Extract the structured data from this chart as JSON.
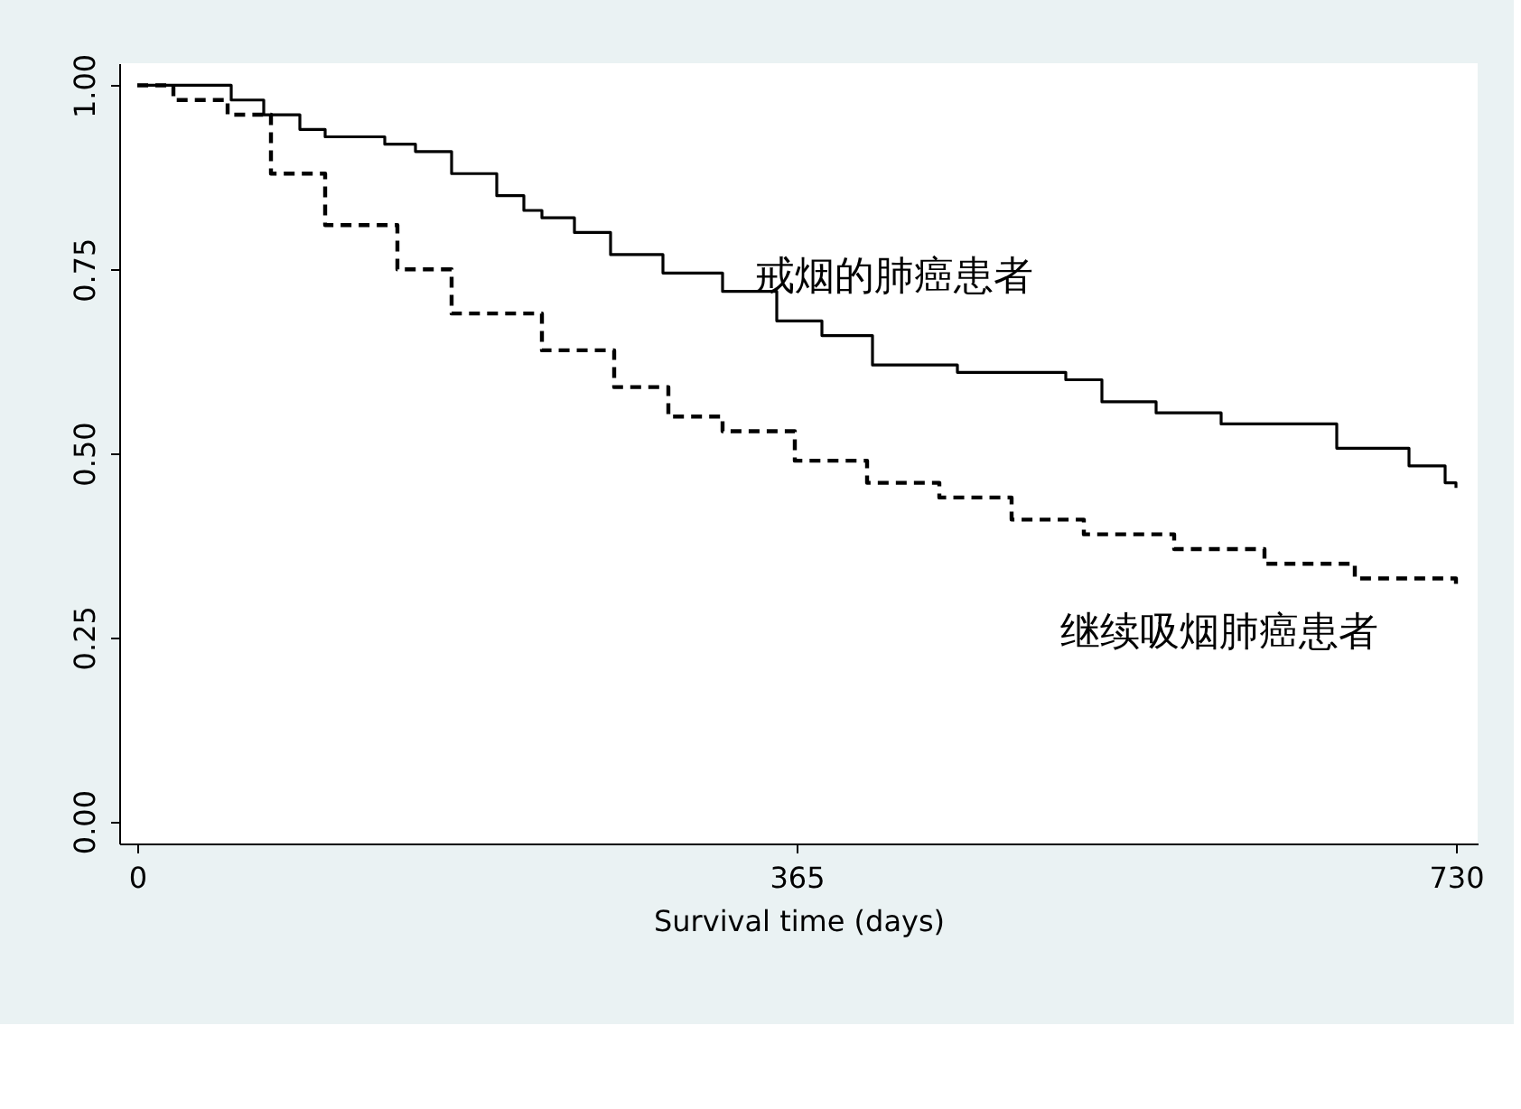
{
  "chart_data": {
    "type": "step",
    "xlabel": "Survival time (days)",
    "xlim": [
      -10,
      742
    ],
    "xticks": [
      0,
      365,
      730
    ],
    "ylim": [
      -0.03,
      1.03
    ],
    "yticks": [
      {
        "value": 0,
        "label": "0.00"
      },
      {
        "value": 0.25,
        "label": "0.25"
      },
      {
        "value": 0.5,
        "label": "0.50"
      },
      {
        "value": 0.75,
        "label": "0.75"
      },
      {
        "value": 1,
        "label": "1.00"
      }
    ],
    "grid": false,
    "series": [
      {
        "name": "戒烟的肺癌患者",
        "color": "#000000",
        "line_style": "solid",
        "x": [
          0,
          52,
          70,
          90,
          104,
          137,
          154,
          174,
          199,
          214,
          224,
          242,
          262,
          291,
          324,
          354,
          379,
          407,
          454,
          514,
          534,
          564,
          600,
          664,
          704,
          724,
          730
        ],
        "values": [
          1.0,
          0.98,
          0.96,
          0.94,
          0.93,
          0.92,
          0.91,
          0.88,
          0.85,
          0.83,
          0.82,
          0.8,
          0.77,
          0.745,
          0.72,
          0.68,
          0.66,
          0.62,
          0.61,
          0.6,
          0.57,
          0.555,
          0.54,
          0.507,
          0.483,
          0.46,
          0.453
        ]
      },
      {
        "name": "继续吸烟肺癌患者",
        "color": "#000000",
        "line_style": "dashed",
        "x": [
          0,
          20,
          50,
          74,
          104,
          144,
          174,
          224,
          264,
          294,
          324,
          364,
          404,
          444,
          484,
          524,
          574,
          624,
          674,
          730
        ],
        "values": [
          1.0,
          0.98,
          0.96,
          0.88,
          0.81,
          0.75,
          0.69,
          0.64,
          0.59,
          0.55,
          0.53,
          0.49,
          0.46,
          0.44,
          0.41,
          0.39,
          0.37,
          0.35,
          0.33,
          0.32
        ]
      }
    ]
  }
}
